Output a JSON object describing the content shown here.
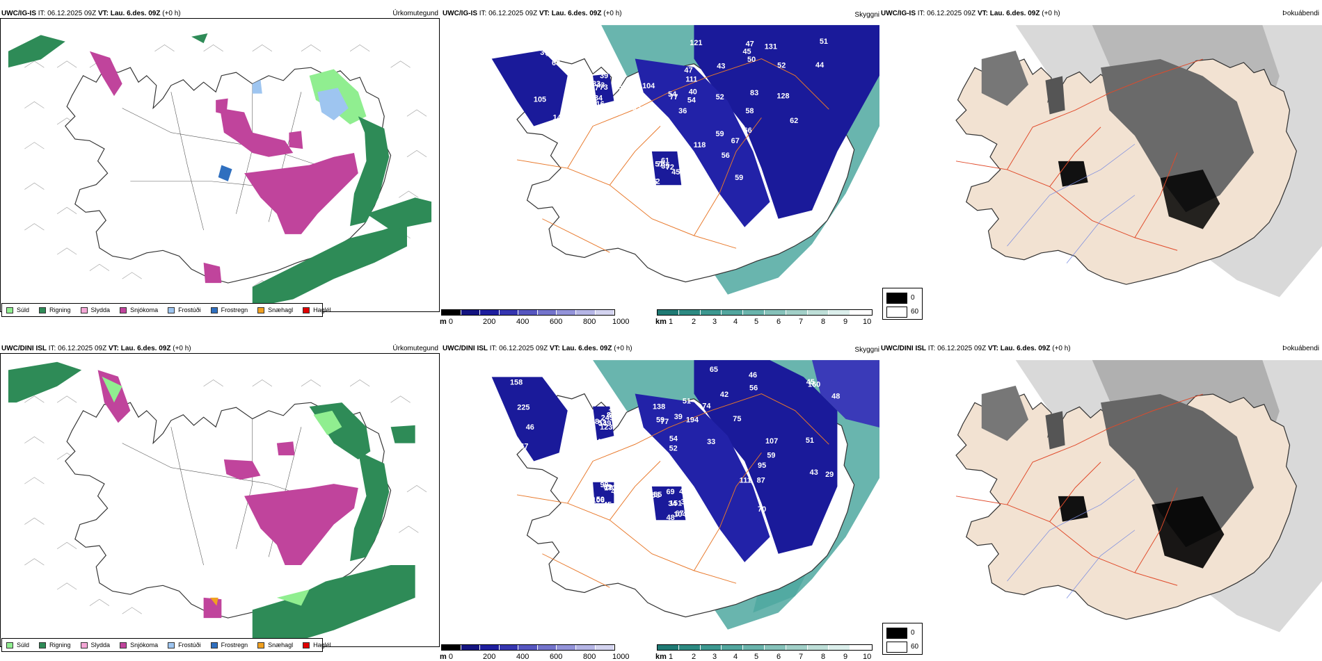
{
  "rows": [
    {
      "model": "UWC/IG-IS",
      "it_label": "IT:",
      "it_value": "06.12.2025 09Z",
      "vt_label": "VT:",
      "vt_value": "Lau. 6.des. 09Z",
      "offset": "(+0 h)",
      "numbers": [
        "140",
        "77",
        "47",
        "45",
        "128",
        "53",
        "61",
        "64",
        "45",
        "43",
        "43",
        "43",
        "83",
        "56",
        "45",
        "50",
        "71",
        "65",
        "54",
        "51",
        "58",
        "46",
        "39",
        "35",
        "37",
        "34",
        "36",
        "44",
        "62",
        "83",
        "73",
        "90",
        "105",
        "116",
        "111",
        "131",
        "118",
        "97",
        "72",
        "66",
        "68",
        "83",
        "77",
        "52",
        "59",
        "49",
        "45",
        "115",
        "199",
        "39",
        "104",
        "121",
        "52",
        "66",
        "52",
        "56",
        "81",
        "73",
        "54",
        "50",
        "67",
        "59",
        "51",
        "50",
        "56",
        "83",
        "40",
        "47"
      ],
      "cloud_note": ""
    },
    {
      "model": "UWC/DINI ISL",
      "it_label": "IT:",
      "it_value": "06.12.2025 09Z",
      "vt_label": "VT:",
      "vt_value": "Lau. 6.des. 09Z",
      "offset": "(+0 h)",
      "numbers": [
        "158",
        "86",
        "194",
        "56",
        "59",
        "151",
        "153",
        "173",
        "211",
        "245",
        "77",
        "74",
        "75",
        "50",
        "48",
        "45",
        "47",
        "34",
        "39",
        "42",
        "33",
        "34",
        "35",
        "44",
        "43",
        "48",
        "59",
        "45",
        "43",
        "55",
        "67",
        "69",
        "71",
        "53",
        "54",
        "48",
        "51",
        "65",
        "45",
        "99",
        "50",
        "48",
        "52",
        "65",
        "87",
        "111",
        "104",
        "101",
        "53",
        "123",
        "138",
        "160",
        "107",
        "95",
        "69",
        "106",
        "225",
        "149",
        "51",
        "46",
        "29",
        "70",
        "55",
        "50",
        "46"
      ],
      "cloud_note": ""
    }
  ],
  "panel_labels": {
    "precip": "Úrkomutegund",
    "ceiling": "Skyggni",
    "fog": "Þokuábendi"
  },
  "precip_legend": [
    {
      "label": "Súld",
      "color": "#90ee90"
    },
    {
      "label": "Rigning",
      "color": "#2e8b57"
    },
    {
      "label": "Slydda",
      "color": "#f4a7d6"
    },
    {
      "label": "Snjókoma",
      "color": "#c0449c"
    },
    {
      "label": "Frostúði",
      "color": "#9ec5f0"
    },
    {
      "label": "Frostregn",
      "color": "#2f6fbf"
    },
    {
      "label": "Snæhagl",
      "color": "#f0a020"
    },
    {
      "label": "Haglél",
      "color": "#e00000"
    }
  ],
  "ceiling_bar": {
    "unit": "m",
    "ticks": [
      "0",
      "200",
      "400",
      "600",
      "800",
      "1000"
    ]
  },
  "vis_bar": {
    "unit": "km",
    "ticks": [
      "1",
      "2",
      "3",
      "4",
      "5",
      "6",
      "7",
      "8",
      "9",
      "10"
    ]
  },
  "fog_legend": {
    "low": "0",
    "high": "60"
  },
  "colors": {
    "rain": "#2e8b57",
    "drizzle": "#90ee90",
    "snow": "#c0449c",
    "ceiling_dark": "#1a1a9a",
    "vis_teal": "#4fa8a0",
    "land_beige": "#f2e2d2",
    "roads": "#e8782a"
  }
}
